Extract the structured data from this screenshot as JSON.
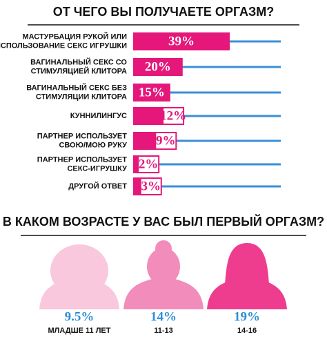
{
  "chart_data": [
    {
      "type": "bar",
      "title": "ОТ ЧЕГО ВЫ ПОЛУЧАЕТЕ ОРГАЗМ?",
      "categories": [
        "МАСТУРБАЦИЯ РУКОЙ ИЛИ\nИСПОЛЬЗОВАНИЕ СЕКС ИГРУШКИ",
        "ВАГИНАЛЬНЫЙ СЕКС  СО\nСТИМУЛЯЦИЕЙ КЛИТОРА",
        "ВАГИНАЛЬНЫЙ СЕКС  БЕЗ\nСТИМУЛЯЦИИ КЛИТОРА",
        "КУННИЛИНГУС",
        "ПАРТНЕР ИСПОЛЬЗУЕТ\nСВОЮ/МОЮ РУКУ",
        "ПАРТНЕР ИСПОЛЬЗУЕТ\nСЕКС-ИГРУШКУ",
        "ДРУГОЙ ОТВЕТ"
      ],
      "values": [
        39,
        20,
        15,
        12,
        9,
        2,
        3
      ],
      "value_labels": [
        "39%",
        "20%",
        "15%",
        "12%",
        "9%",
        "2%",
        "3%"
      ],
      "color": "#e5177b",
      "track_color": "#3a8fd8"
    },
    {
      "type": "pictogram",
      "title": "В КАКОМ ВОЗРАСТЕ У ВАС БЫЛ ПЕРВЫЙ ОРГАЗМ?",
      "categories": [
        "МЛАДШЕ 11 ЛЕТ",
        "11-13",
        "14-16"
      ],
      "values": [
        9.5,
        14,
        19
      ],
      "value_labels": [
        "9.5%",
        "14%",
        "19%"
      ],
      "colors": [
        "#f9c8dd",
        "#f28cba",
        "#ee3d8e"
      ],
      "label_color": "#2f8fd6"
    }
  ]
}
